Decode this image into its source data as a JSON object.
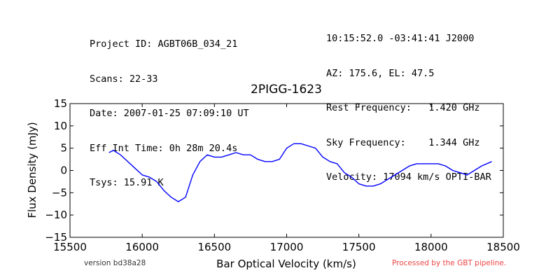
{
  "header": {
    "left": [
      "Project ID: AGBT06B_034_21",
      "Scans: 22-33",
      "Date: 2007-01-25 07:09:10 UT",
      "Eff Int Time: 0h 28m 20.4s",
      "Tsys: 15.91 K"
    ],
    "right": [
      "10:15:52.0 -03:41:41 J2000",
      "AZ: 175.6, EL: 47.5",
      "Rest Frequency:   1.420 GHz",
      "Sky Frequency:    1.344 GHz",
      "Velocity: 17094 km/s OPTI-BAR"
    ]
  },
  "footer": {
    "version": "version bd38a28",
    "processed": "Processed by the GBT pipeline."
  },
  "chart_data": {
    "type": "line",
    "title": "2PIGG-1623",
    "xlabel": "Bar Optical Velocity (km/s)",
    "ylabel": "Flux Density (mJy)",
    "xlim": [
      15500,
      18500
    ],
    "ylim": [
      -15,
      15
    ],
    "xticks": [
      15500,
      16000,
      16500,
      17000,
      17500,
      18000,
      18500
    ],
    "yticks": [
      -15,
      -10,
      -5,
      0,
      5,
      10,
      15
    ],
    "grid": false,
    "line_color": "#0000ff",
    "series": [
      {
        "x": [
          15770,
          15800,
          15850,
          15900,
          15950,
          16000,
          16050,
          16100,
          16150,
          16200,
          16250,
          16300,
          16350,
          16400,
          16450,
          16500,
          16550,
          16600,
          16650,
          16700,
          16750,
          16800,
          16850,
          16900,
          16950,
          17000,
          17050,
          17100,
          17150,
          17200,
          17250,
          17300,
          17350,
          17400,
          17450,
          17500,
          17550,
          17600,
          17650,
          17700,
          17750,
          17800,
          17850,
          17900,
          17950,
          18000,
          18050,
          18100,
          18150,
          18200,
          18250,
          18300,
          18350,
          18420
        ],
        "y": [
          4,
          4.5,
          3.5,
          2,
          0.5,
          -1,
          -1.5,
          -2.5,
          -4.5,
          -6,
          -7,
          -6,
          -1,
          2,
          3.5,
          3,
          3,
          3.5,
          4,
          3.5,
          3.5,
          2.5,
          2,
          2,
          2.5,
          5,
          6,
          6,
          5.5,
          5,
          3,
          2,
          1.5,
          -0.5,
          -1.5,
          -3,
          -3.5,
          -3.5,
          -3,
          -2,
          -1,
          0,
          1,
          1.5,
          1.5,
          1.5,
          1.5,
          1,
          0,
          -0.5,
          -1,
          0,
          1,
          2
        ]
      }
    ]
  }
}
